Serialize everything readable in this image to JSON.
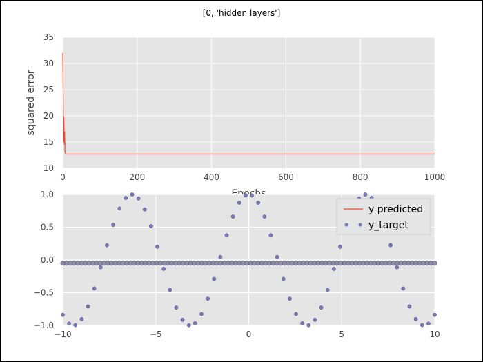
{
  "figure": {
    "suptitle": "[0, 'hidden layers']"
  },
  "chart_data": [
    {
      "type": "line",
      "title": "",
      "xlabel": "Epochs",
      "ylabel": "squared error",
      "xlim": [
        0,
        1000
      ],
      "ylim": [
        10,
        35
      ],
      "xticks": [
        0,
        200,
        400,
        600,
        800,
        1000
      ],
      "yticks": [
        10,
        15,
        20,
        25,
        30,
        35
      ],
      "grid": true,
      "line_color": "#e24a33",
      "series": [
        {
          "x": [
            0,
            1,
            2,
            3,
            4,
            5,
            6,
            7,
            8,
            10,
            15,
            25,
            50,
            100,
            200,
            400,
            600,
            800,
            1000
          ],
          "y": [
            32.0,
            25.0,
            15.0,
            19.8,
            14.5,
            17.0,
            13.2,
            12.8,
            12.7,
            12.7,
            12.7,
            12.7,
            12.7,
            12.7,
            12.7,
            12.7,
            12.7,
            12.7,
            12.7
          ]
        }
      ]
    },
    {
      "type": "scatter",
      "title": "",
      "xlabel": "",
      "ylabel": "",
      "xlim": [
        -10,
        10
      ],
      "ylim": [
        -1.0,
        1.0
      ],
      "xticks": [
        -10,
        -5,
        0,
        5,
        10
      ],
      "yticks": [
        1.0,
        0.5,
        0.0,
        -0.5,
        -1.0
      ],
      "ytick_labels": [
        "1.0",
        "0.5",
        "0.0",
        "−0.5",
        "−1.0"
      ],
      "xtick_labels": [
        "−10",
        "−5",
        "0",
        "5",
        "10"
      ],
      "grid": true,
      "legend_position": "top-right",
      "series": [
        {
          "name": "y predicted",
          "kind": "line-with-markers",
          "color": "#e24a33",
          "marker_fill": "#8e8ea8",
          "constant_y": -0.05,
          "x_start": -10,
          "x_end": 10,
          "n_points": 100
        },
        {
          "name": "y_target",
          "kind": "scatter",
          "color": "#7a7ab8",
          "function": "cos(x)",
          "x_start": -10,
          "x_end": 10,
          "n_points": 60
        }
      ]
    }
  ]
}
